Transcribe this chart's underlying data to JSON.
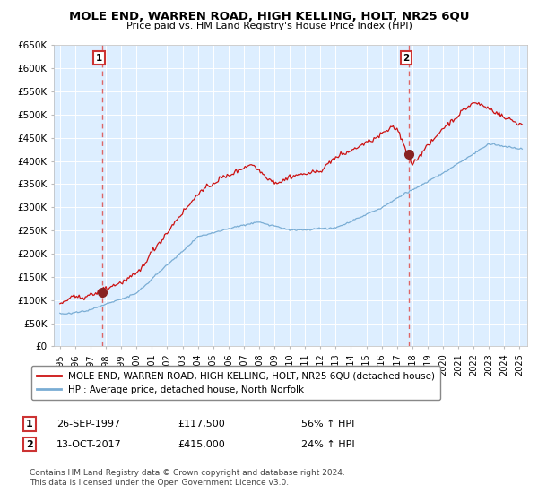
{
  "title": "MOLE END, WARREN ROAD, HIGH KELLING, HOLT, NR25 6QU",
  "subtitle": "Price paid vs. HM Land Registry's House Price Index (HPI)",
  "legend_line1": "MOLE END, WARREN ROAD, HIGH KELLING, HOLT, NR25 6QU (detached house)",
  "legend_line2": "HPI: Average price, detached house, North Norfolk",
  "annotation1_date": "26-SEP-1997",
  "annotation1_price": "£117,500",
  "annotation1_hpi": "56% ↑ HPI",
  "annotation2_date": "13-OCT-2017",
  "annotation2_price": "£415,000",
  "annotation2_hpi": "24% ↑ HPI",
  "footnote": "Contains HM Land Registry data © Crown copyright and database right 2024.\nThis data is licensed under the Open Government Licence v3.0.",
  "hpi_color": "#7aadd4",
  "price_color": "#cc1111",
  "marker_color": "#882222",
  "vline_color": "#dd6666",
  "bg_color": "#ddeeff",
  "grid_color": "#ffffff",
  "ylim": [
    0,
    650000
  ],
  "yticks": [
    0,
    50000,
    100000,
    150000,
    200000,
    250000,
    300000,
    350000,
    400000,
    450000,
    500000,
    550000,
    600000,
    650000
  ],
  "sale1_year": 1997.75,
  "sale1_val": 117500,
  "sale2_year": 2017.79,
  "sale2_val": 415000
}
